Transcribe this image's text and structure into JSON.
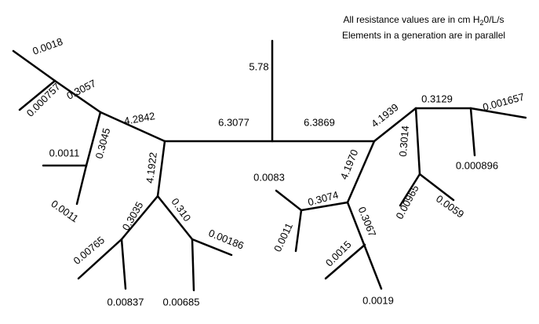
{
  "note": {
    "line1": {
      "before": "All resistance values are in cm H",
      "subscript": "2",
      "after": "0/L/s"
    },
    "line2": "Elements in a generation are in parallel"
  },
  "labels": [
    "5.78",
    "6.3077",
    "6.3869",
    "4.2842",
    "4.1922",
    "0.3057",
    "0.3045",
    "0.0018",
    "0.000757",
    "0.0011",
    "0.0011",
    "0.3035",
    "0.310",
    "0.00765",
    "0.00837",
    "0.00186",
    "0.00685",
    "4.1939",
    "4.1970",
    "0.3129",
    "0.001657",
    "0.000896",
    "0.3014",
    "0.00965",
    "0.0059",
    "0.3074",
    "0.0083",
    "0.0011",
    "0.3067",
    "0.0015",
    "0.0019"
  ]
}
